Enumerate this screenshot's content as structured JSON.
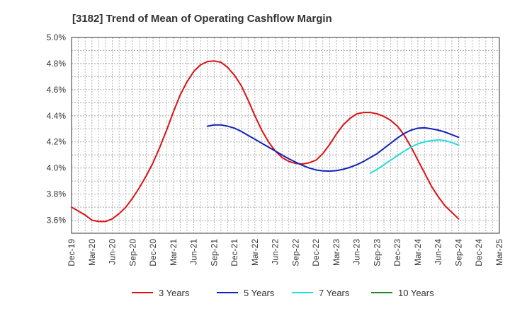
{
  "chart_data": {
    "type": "line",
    "title": "[3182]  Trend of Mean of Operating Cashflow Margin",
    "xlabel": "",
    "ylabel": "",
    "ylim": [
      3.5,
      5.0
    ],
    "grid": true,
    "legend_placement": "bottom",
    "x_ticks": [
      "Dec-19",
      "Mar-20",
      "Jun-20",
      "Sep-20",
      "Dec-20",
      "Mar-21",
      "Jun-21",
      "Sep-21",
      "Dec-21",
      "Mar-22",
      "Jun-22",
      "Sep-22",
      "Dec-22",
      "Mar-23",
      "Jun-23",
      "Sep-23",
      "Dec-23",
      "Mar-24",
      "Jun-24",
      "Sep-24",
      "Dec-24",
      "Mar-25"
    ],
    "y_ticks": [
      {
        "value": 3.6,
        "label": "3.6%"
      },
      {
        "value": 3.8,
        "label": "3.8%"
      },
      {
        "value": 4.0,
        "label": "4.0%"
      },
      {
        "value": 4.2,
        "label": "4.2%"
      },
      {
        "value": 4.4,
        "label": "4.4%"
      },
      {
        "value": 4.6,
        "label": "4.6%"
      },
      {
        "value": 4.8,
        "label": "4.8%"
      },
      {
        "value": 5.0,
        "label": "5.0%"
      }
    ],
    "series": [
      {
        "name": "3 Years",
        "color": "#dd1111",
        "x": [
          "Dec-19",
          "Jan-20",
          "Feb-20",
          "Mar-20",
          "Apr-20",
          "May-20",
          "Jun-20",
          "Jul-20",
          "Aug-20",
          "Sep-20",
          "Oct-20",
          "Nov-20",
          "Dec-20",
          "Jan-21",
          "Feb-21",
          "Mar-21",
          "Apr-21",
          "May-21",
          "Jun-21",
          "Jul-21",
          "Aug-21",
          "Sep-21",
          "Oct-21",
          "Nov-21",
          "Dec-21",
          "Jan-22",
          "Feb-22",
          "Mar-22",
          "Apr-22",
          "May-22",
          "Jun-22",
          "Jul-22",
          "Aug-22",
          "Sep-22",
          "Oct-22",
          "Nov-22",
          "Dec-22",
          "Jan-23",
          "Feb-23",
          "Mar-23",
          "Apr-23",
          "May-23",
          "Jun-23",
          "Jul-23",
          "Aug-23",
          "Sep-23",
          "Oct-23",
          "Nov-23",
          "Dec-23",
          "Jan-24",
          "Feb-24",
          "Mar-24",
          "Apr-24",
          "May-24",
          "Jun-24",
          "Jul-24",
          "Aug-24",
          "Sep-24"
        ],
        "values": [
          3.7,
          3.67,
          3.64,
          3.6,
          3.59,
          3.59,
          3.61,
          3.65,
          3.7,
          3.77,
          3.85,
          3.94,
          4.04,
          4.16,
          4.29,
          4.43,
          4.56,
          4.66,
          4.74,
          4.79,
          4.815,
          4.82,
          4.81,
          4.77,
          4.71,
          4.63,
          4.52,
          4.4,
          4.29,
          4.2,
          4.13,
          4.08,
          4.05,
          4.035,
          4.03,
          4.04,
          4.06,
          4.11,
          4.18,
          4.26,
          4.33,
          4.38,
          4.415,
          4.425,
          4.425,
          4.415,
          4.395,
          4.365,
          4.32,
          4.25,
          4.16,
          4.06,
          3.96,
          3.86,
          3.78,
          3.71,
          3.66,
          3.61
        ]
      },
      {
        "name": "5 Years",
        "color": "#1122bb",
        "x": [
          "Aug-21",
          "Sep-21",
          "Oct-21",
          "Nov-21",
          "Dec-21",
          "Jan-22",
          "Feb-22",
          "Mar-22",
          "Apr-22",
          "May-22",
          "Jun-22",
          "Jul-22",
          "Aug-22",
          "Sep-22",
          "Oct-22",
          "Nov-22",
          "Dec-22",
          "Jan-23",
          "Feb-23",
          "Mar-23",
          "Apr-23",
          "May-23",
          "Jun-23",
          "Jul-23",
          "Aug-23",
          "Sep-23",
          "Oct-23",
          "Nov-23",
          "Dec-23",
          "Jan-24",
          "Feb-24",
          "Mar-24",
          "Apr-24",
          "May-24",
          "Jun-24",
          "Jul-24",
          "Aug-24",
          "Sep-24"
        ],
        "values": [
          4.32,
          4.33,
          4.33,
          4.32,
          4.305,
          4.28,
          4.25,
          4.22,
          4.19,
          4.16,
          4.13,
          4.1,
          4.07,
          4.045,
          4.02,
          4.0,
          3.985,
          3.978,
          3.976,
          3.98,
          3.99,
          4.005,
          4.025,
          4.05,
          4.08,
          4.11,
          4.15,
          4.19,
          4.23,
          4.265,
          4.29,
          4.305,
          4.308,
          4.3,
          4.29,
          4.275,
          4.255,
          4.235
        ]
      },
      {
        "name": "7 Years",
        "color": "#22dddd",
        "x": [
          "Aug-23",
          "Sep-23",
          "Oct-23",
          "Nov-23",
          "Dec-23",
          "Jan-24",
          "Feb-24",
          "Mar-24",
          "Apr-24",
          "May-24",
          "Jun-24",
          "Jul-24",
          "Aug-24",
          "Sep-24"
        ],
        "values": [
          3.96,
          3.99,
          4.025,
          4.06,
          4.095,
          4.13,
          4.16,
          4.185,
          4.2,
          4.21,
          4.215,
          4.21,
          4.195,
          4.175
        ]
      },
      {
        "name": "10 Years",
        "color": "#228822",
        "x": [],
        "values": []
      }
    ]
  }
}
